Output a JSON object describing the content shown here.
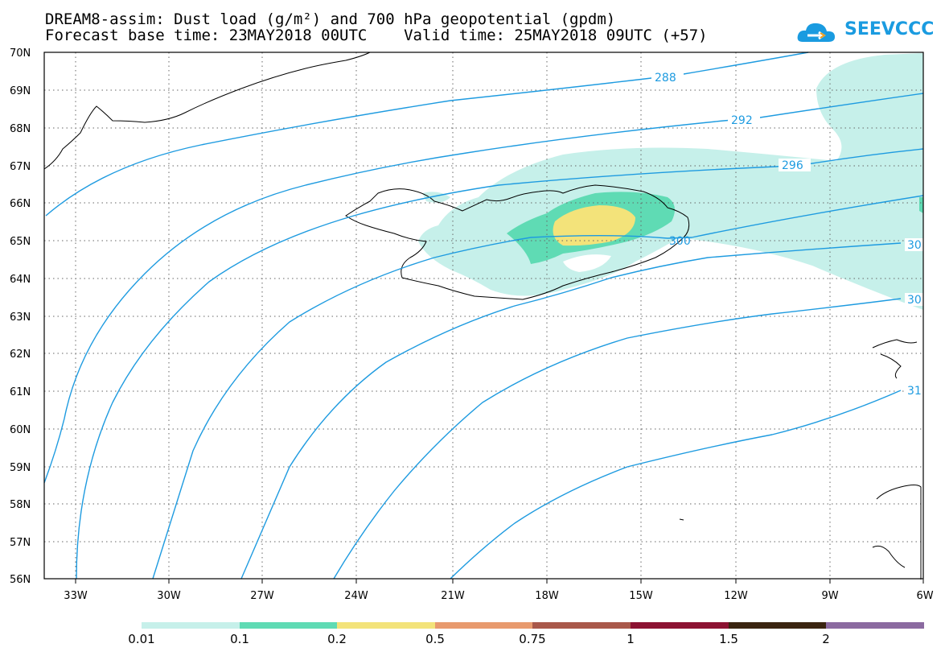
{
  "header": {
    "line1": "DREAM8-assim: Dust load (g/m²) and 700 hPa geopotential (gpdm)",
    "line2": "Forecast base time: 23MAY2018 00UTC    Valid time: 25MAY2018 09UTC (+57)"
  },
  "logo": {
    "text": "SEEVCCC",
    "icon": "cloud-icon"
  },
  "map": {
    "lat_labels": [
      "70N",
      "69N",
      "68N",
      "67N",
      "66N",
      "65N",
      "64N",
      "63N",
      "62N",
      "61N",
      "60N",
      "59N",
      "58N",
      "57N",
      "56N"
    ],
    "lon_labels": [
      "33W",
      "30W",
      "27W",
      "24W",
      "21W",
      "18W",
      "15W",
      "12W",
      "9W",
      "6W"
    ],
    "contour_labels": [
      "288",
      "292",
      "296",
      "300",
      "30",
      "30",
      "31"
    ],
    "colors": {
      "contour": "#1e9be0",
      "coast": "#000000"
    }
  },
  "colorbar": {
    "labels": [
      "0.01",
      "0.1",
      "0.2",
      "0.5",
      "0.75",
      "1",
      "1.5",
      "2"
    ],
    "colors": [
      "#c6f0ea",
      "#5fdbb4",
      "#f3e37a",
      "#e89a6e",
      "#a9584a",
      "#8c1232",
      "#3a2410",
      "#8b6aa0"
    ]
  }
}
